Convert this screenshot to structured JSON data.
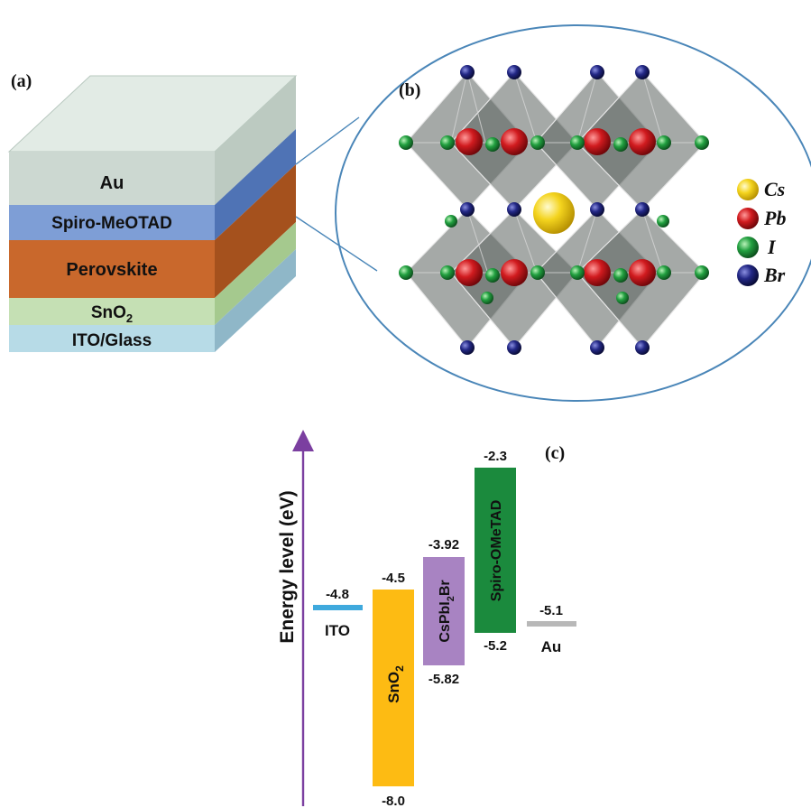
{
  "panel_a": {
    "label": "(a)",
    "layers": [
      {
        "name": "Au",
        "color": "#ccd8d1"
      },
      {
        "name": "Spiro-MeOTAD",
        "color": "#7e9ed6"
      },
      {
        "name": "Perovskite",
        "color": "#c9682c"
      },
      {
        "name": "SnO",
        "subscript": "2",
        "color": "#c5e0b4"
      },
      {
        "name": "ITO/Glass",
        "color": "#b7dbe7"
      }
    ]
  },
  "panel_b": {
    "label": "(b)",
    "legend": [
      {
        "name": "Cs",
        "color": "#f2d01c"
      },
      {
        "name": "Pb",
        "color": "#c8161d"
      },
      {
        "name": "I",
        "color": "#1f9a3c"
      },
      {
        "name": "Br",
        "color": "#1c1f78"
      }
    ]
  },
  "panel_c": {
    "label": "(c)",
    "y_axis_label": "Energy level (eV)",
    "materials": [
      {
        "name": "ITO",
        "level": "-4.8",
        "color": "#3fa9dd"
      },
      {
        "name": "SnO",
        "subscript": "2",
        "top": "-4.5",
        "bottom": "-8.0",
        "color": "#fdbb13"
      },
      {
        "name": "CsPbI",
        "subscript": "2",
        "suffix": "Br",
        "top": "-3.92",
        "bottom": "-5.82",
        "color": "#a883c2"
      },
      {
        "name": "Spiro-OMeTAD",
        "top": "-2.3",
        "bottom": "-5.2",
        "color": "#1b8a3d"
      },
      {
        "name": "Au",
        "level": "-5.1",
        "color": "#b8b8b8"
      }
    ]
  }
}
